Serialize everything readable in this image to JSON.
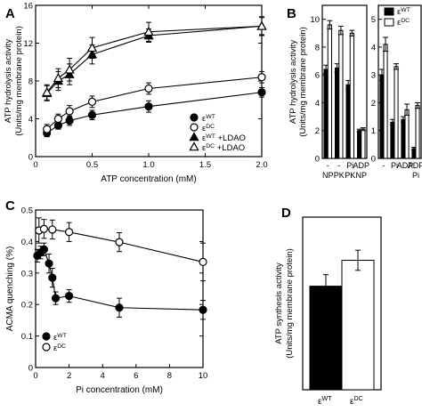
{
  "panels": {
    "A": {
      "label": "A"
    },
    "B": {
      "label": "B"
    },
    "C": {
      "label": "C"
    },
    "D": {
      "label": "D"
    }
  },
  "chart_data": [
    {
      "panel": "A",
      "type": "line",
      "xlabel": "ATP concentration (mM)",
      "ylabel": "ATP hydrolysis activity",
      "ylabel2": "(Units/mg membrane protein)",
      "xlim": [
        0,
        2.0
      ],
      "ylim": [
        0,
        16
      ],
      "xticks": [
        "0",
        "0.5",
        "1.0",
        "1.5",
        "2.0"
      ],
      "yticks": [
        "0",
        "4",
        "8",
        "12",
        "16"
      ],
      "legend_position": "bottom-right",
      "x": [
        0.1,
        0.2,
        0.3,
        0.5,
        1.0,
        2.0
      ],
      "series": [
        {
          "name": "εWT",
          "base": "ε",
          "sup": "WT",
          "suffix": "",
          "marker": "filled-circle",
          "values": [
            2.5,
            3.3,
            3.8,
            4.4,
            5.3,
            6.8
          ],
          "errors": [
            0.4,
            0.4,
            0.5,
            0.5,
            0.6,
            0.5
          ]
        },
        {
          "name": "εDC",
          "base": "ε",
          "sup": "DC",
          "suffix": "",
          "marker": "open-circle",
          "values": [
            2.9,
            4.0,
            4.8,
            5.8,
            7.2,
            8.4
          ],
          "errors": [
            0.5,
            0.5,
            0.6,
            0.6,
            0.6,
            0.6
          ]
        },
        {
          "name": "εWT +LDAO",
          "base": "ε",
          "sup": "WT",
          "suffix": " +LDAO",
          "marker": "filled-triangle",
          "values": [
            6.7,
            8.0,
            8.7,
            10.8,
            12.8,
            13.8
          ],
          "errors": [
            0.8,
            1.0,
            1.1,
            1.0,
            0.7,
            0.9
          ]
        },
        {
          "name": "εDC +LDAO",
          "base": "ε",
          "sup": "DC",
          "suffix": " +LDAO",
          "marker": "open-triangle",
          "values": [
            6.8,
            8.3,
            9.2,
            11.5,
            13.2,
            13.8
          ],
          "errors": [
            0.8,
            1.0,
            1.2,
            1.1,
            1.0,
            1.0
          ]
        }
      ]
    },
    {
      "panel": "B",
      "type": "bar",
      "ylabel": "ATP hydrolysis activity",
      "ylabel2": "(Units/mg membrane protein)",
      "ylim": [
        0,
        11
      ],
      "yticks": [
        "0",
        "2",
        "4",
        "6",
        "8",
        "10"
      ],
      "categories": [
        {
          "line1": "-",
          "line2": "NP"
        },
        {
          "line1": "-",
          "line2": "PK"
        },
        {
          "line1": "Pi",
          "line2": "PK"
        },
        {
          "line1": "ADP",
          "line2": "NP"
        }
      ],
      "series": [
        {
          "name": "εWT",
          "fill": "#000000",
          "values": [
            6.4,
            6.5,
            5.3,
            2.0
          ],
          "errors": [
            0.3,
            0.3,
            0.3,
            0.1
          ]
        },
        {
          "name": "εDC",
          "fill": "#ffffff",
          "values": [
            9.6,
            9.2,
            9.0,
            2.1
          ],
          "errors": [
            0.3,
            0.3,
            0.2,
            0.1
          ]
        }
      ]
    },
    {
      "panel": "B-right",
      "type": "bar",
      "ylim": [
        0,
        5.5
      ],
      "yticks": [
        "0",
        "1",
        "2",
        "3",
        "4",
        "5"
      ],
      "legend_position": "top-right",
      "categories": [
        {
          "line1": "-",
          "line2": ""
        },
        {
          "line1": "Pi",
          "line2": ""
        },
        {
          "line1": "ADP",
          "line2": ""
        },
        {
          "line1": "ADP",
          "line2": "Pi"
        }
      ],
      "series": [
        {
          "name": "εWT",
          "base": "ε",
          "sup": "WT",
          "fill": "#000000",
          "values": [
            3.0,
            1.3,
            1.4,
            0.35
          ],
          "errors": [
            0.2,
            0.1,
            0.1,
            0.05
          ]
        },
        {
          "name": "εDC",
          "base": "ε",
          "sup": "DC",
          "fill": "#ffffff",
          "values": [
            4.1,
            3.3,
            1.75,
            1.9
          ],
          "errors": [
            0.25,
            0.1,
            0.2,
            0.1
          ]
        }
      ]
    },
    {
      "panel": "C",
      "type": "line",
      "xlabel": "Pi concentration (mM)",
      "ylabel": "ACMA quenching (%)",
      "xlim": [
        0,
        10
      ],
      "ylim": [
        0,
        0.5
      ],
      "xticks": [
        "0",
        "2",
        "4",
        "6",
        "8",
        "10"
      ],
      "yticks": [
        "0",
        "0.1",
        "0.2",
        "0.3",
        "0.4",
        "0.5"
      ],
      "legend_position": "bottom-left",
      "series": [
        {
          "name": "εWT",
          "base": "ε",
          "sup": "WT",
          "marker": "filled-circle",
          "x": [
            0.1,
            0.3,
            0.5,
            0.8,
            1.0,
            1.2,
            2.0,
            5.0,
            10.0
          ],
          "values": [
            0.355,
            0.365,
            0.375,
            0.33,
            0.285,
            0.22,
            0.227,
            0.19,
            0.183
          ],
          "errors": [
            0.02,
            0.02,
            0.02,
            0.03,
            0.03,
            0.02,
            0.02,
            0.03,
            0.03
          ]
        },
        {
          "name": "εDC",
          "base": "ε",
          "sup": "DC",
          "marker": "open-circle",
          "x": [
            0.2,
            0.5,
            1.0,
            2.0,
            5.0,
            10.0
          ],
          "values": [
            0.435,
            0.44,
            0.438,
            0.43,
            0.398,
            0.335
          ],
          "errors": [
            0.04,
            0.03,
            0.03,
            0.03,
            0.03,
            0.06
          ]
        }
      ]
    },
    {
      "panel": "D",
      "type": "bar",
      "ylabel": "ATP synthesis activity",
      "ylabel2": "(Units/mg membrane protein)",
      "categories": [
        {
          "base": "ε",
          "sup": "WT"
        },
        {
          "base": "ε",
          "sup": "DC"
        }
      ],
      "values": [
        0.72,
        0.9
      ],
      "errors": [
        0.08,
        0.07
      ],
      "fills": [
        "#000000",
        "#ffffff"
      ],
      "ylim": [
        0,
        1.2
      ]
    }
  ]
}
